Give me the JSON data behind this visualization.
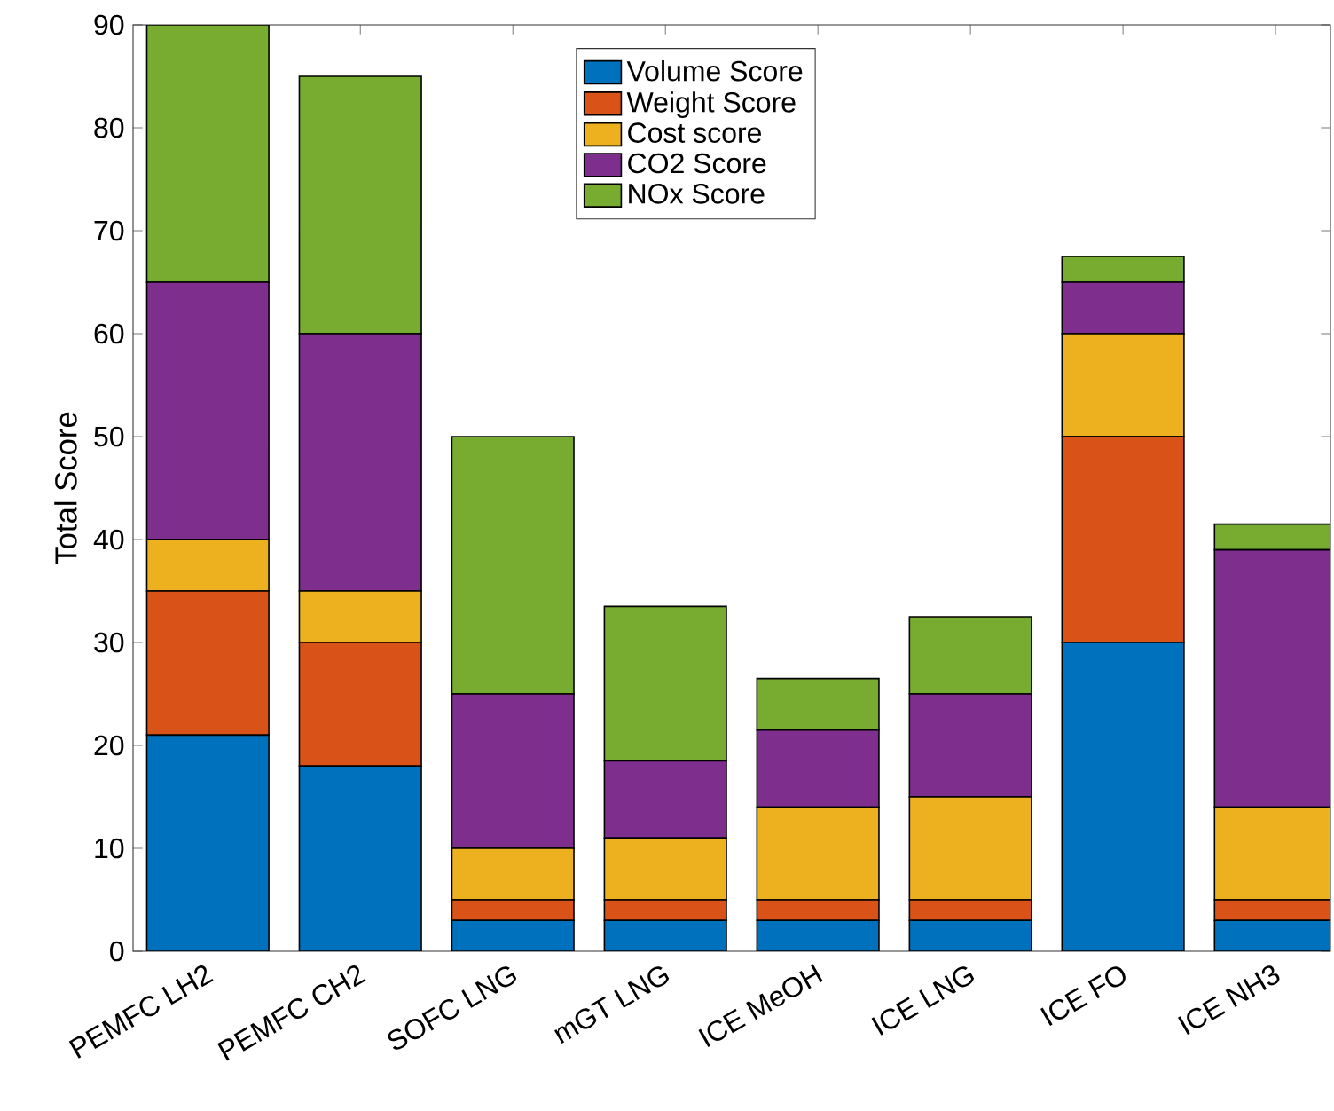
{
  "chart_data": {
    "type": "bar",
    "stacked": true,
    "ylabel": "Total Score",
    "categories": [
      "PEMFC LH2",
      "PEMFC CH2",
      "SOFC LNG",
      "mGT LNG",
      "ICE MeOH",
      "ICE LNG",
      "ICE FO",
      "ICE NH3"
    ],
    "series": [
      {
        "name": "Volume Score",
        "color": "#0072bd",
        "values": [
          21,
          18,
          3,
          3,
          3,
          3,
          30,
          3
        ]
      },
      {
        "name": "Weight Score",
        "color": "#d95319",
        "values": [
          14,
          12,
          2,
          2,
          2,
          2,
          20,
          2
        ]
      },
      {
        "name": "Cost score",
        "color": "#edb120",
        "values": [
          5,
          5,
          5,
          6,
          9,
          10,
          10,
          9
        ]
      },
      {
        "name": "CO2 Score",
        "color": "#7e2f8e",
        "values": [
          25,
          25,
          15,
          7.5,
          7.5,
          10,
          5,
          25
        ]
      },
      {
        "name": "NOx Score",
        "color": "#77ac30",
        "values": [
          25,
          25,
          25,
          15,
          5,
          7.5,
          2.5,
          2.5
        ]
      }
    ],
    "ylim": [
      0,
      90
    ],
    "yticks": [
      0,
      10,
      20,
      30,
      40,
      50,
      60,
      70,
      80,
      90
    ],
    "legend": "top",
    "grid": false
  }
}
